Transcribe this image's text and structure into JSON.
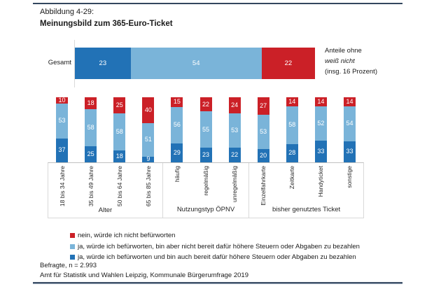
{
  "title": {
    "line1": "Abbildung 4-29:",
    "line2": "Meinungsbild zum 365-Euro-Ticket"
  },
  "note": {
    "line1": "Anteile ohne",
    "line2": "weiß nicht",
    "line3": "(insg. 16 Prozent)"
  },
  "colors": {
    "no": "#cb2027",
    "yes_not_ready_to_pay": "#7ab4d9",
    "yes_ready_to_pay": "#2272b6",
    "rule_dark": "#33475e",
    "grid": "#d9d9d9"
  },
  "legend": [
    {
      "label": "nein, würde ich nicht befürworten",
      "color": "#cb2027"
    },
    {
      "label": "ja, würde ich befürworten, bin aber nicht bereit dafür höhere Steuern oder Abgaben zu bezahlen",
      "color": "#7ab4d9"
    },
    {
      "label": "ja, würde ich befürworten und bin auch bereit dafür höhere Steuern oder Abgaben zu bezahlen",
      "color": "#2272b6"
    }
  ],
  "footer": {
    "line1": "Befragte, n = 2.993",
    "line2": "Amt für Statistik und Wahlen Leipzig, Kommunale Bürgerumfrage 2019"
  },
  "chart_data": [
    {
      "type": "bar",
      "name": "gesamt-overview",
      "orientation": "horizontal",
      "stacked": true,
      "categories": [
        "Gesamt"
      ],
      "xlim": [
        0,
        100
      ],
      "series": [
        {
          "name": "ja, würde ich befürworten und bin auch bereit dafür höhere Steuern oder Abgaben zu bezahlen",
          "color": "#2272b6",
          "values": [
            23
          ]
        },
        {
          "name": "ja, würde ich befürworten, bin aber nicht bereit dafür höhere Steuern oder Abgaben zu bezahlen",
          "color": "#7ab4d9",
          "values": [
            54
          ]
        },
        {
          "name": "nein, würde ich nicht befürworten",
          "color": "#cb2027",
          "values": [
            22
          ]
        }
      ],
      "annotation": "Anteile ohne weiß nicht (insg. 16 Prozent)"
    },
    {
      "type": "bar",
      "name": "subgroup-columns",
      "orientation": "vertical",
      "stacked": true,
      "ylim": [
        0,
        100
      ],
      "groups": [
        {
          "label": "Alter",
          "categories": [
            "18 bis 34 Jahre",
            "35 bis 49 Jahre",
            "50 bis 64 Jahre",
            "65 bis 85 Jahre"
          ]
        },
        {
          "label": "Nutzungstyp ÖPNV",
          "categories": [
            "häufig",
            "regelmäßig",
            "unregelmäßig"
          ]
        },
        {
          "label": "bisher genutztes Ticket",
          "categories": [
            "Einzelfahrkarte",
            "Zeitkarte",
            "Handyticket",
            "sonstige"
          ]
        }
      ],
      "stack_order_top_to_bottom": [
        "nein",
        "ja, nicht bereit zu zahlen",
        "ja, bereit zu zahlen"
      ],
      "series": [
        {
          "name": "nein, würde ich nicht befürworten",
          "color": "#cb2027",
          "values": [
            10,
            18,
            25,
            40,
            15,
            22,
            24,
            27,
            14,
            14,
            14
          ]
        },
        {
          "name": "ja, würde ich befürworten, bin aber nicht bereit dafür höhere Steuern oder Abgaben zu bezahlen",
          "color": "#7ab4d9",
          "values": [
            53,
            58,
            58,
            51,
            56,
            55,
            53,
            53,
            58,
            52,
            54
          ]
        },
        {
          "name": "ja, würde ich befürworten und bin auch bereit dafür höhere Steuern oder Abgaben zu bezahlen",
          "color": "#2272b6",
          "values": [
            37,
            25,
            18,
            9,
            29,
            23,
            22,
            20,
            28,
            33,
            33
          ]
        }
      ]
    }
  ]
}
